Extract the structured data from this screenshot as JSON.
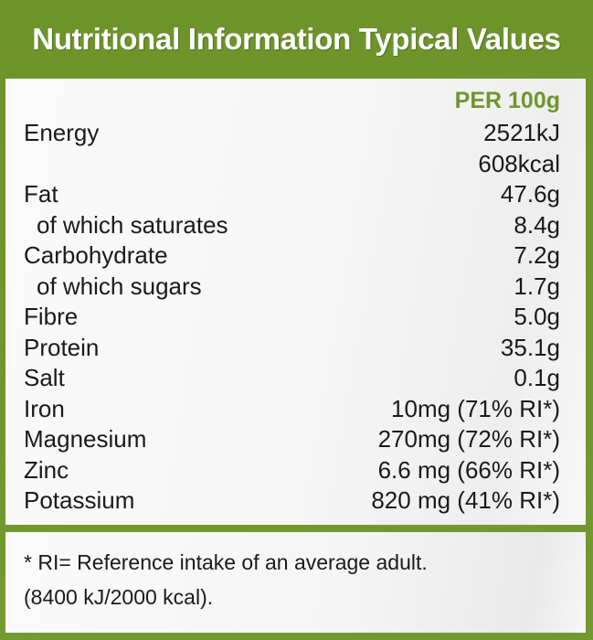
{
  "header": {
    "title": "Nutritional Information Typical Values"
  },
  "table": {
    "column_header": "PER 100g",
    "rows": [
      {
        "label": "Energy",
        "value": "2521kJ",
        "sub": false
      },
      {
        "label": "",
        "value": "608kcal",
        "sub": false
      },
      {
        "label": "Fat",
        "value": "47.6g",
        "sub": false
      },
      {
        "label": "of which saturates",
        "value": "8.4g",
        "sub": true
      },
      {
        "label": "Carbohydrate",
        "value": "7.2g",
        "sub": false
      },
      {
        "label": "of which sugars",
        "value": "1.7g",
        "sub": true
      },
      {
        "label": "Fibre",
        "value": "5.0g",
        "sub": false
      },
      {
        "label": "Protein",
        "value": "35.1g",
        "sub": false
      },
      {
        "label": "Salt",
        "value": "0.1g",
        "sub": false
      },
      {
        "label": "Iron",
        "value": "10mg (71% RI*)",
        "sub": false
      },
      {
        "label": "Magnesium",
        "value": "270mg (72% RI*)",
        "sub": false
      },
      {
        "label": "Zinc",
        "value": "6.6 mg (66% RI*)",
        "sub": false
      },
      {
        "label": "Potassium",
        "value": "820 mg (41% RI*)",
        "sub": false
      }
    ]
  },
  "footnote": {
    "line1": "* RI= Reference intake of an average adult.",
    "line2": "(8400 kJ/2000 kcal)."
  },
  "colors": {
    "brand_green": "#6f962c",
    "panel_bg": "#f7f7f7",
    "text": "#1a1a1a"
  }
}
